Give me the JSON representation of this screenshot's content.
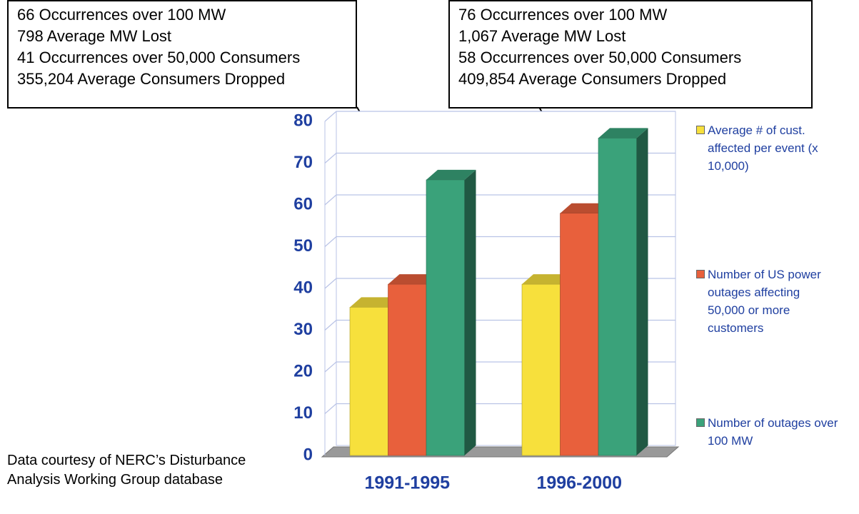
{
  "chart_data": {
    "type": "bar3d",
    "categories": [
      "1991-1995",
      "1996-2000"
    ],
    "series": [
      {
        "name": "Average # of cust. affected per event (x 10,000)",
        "color": "#f7e03c",
        "values": [
          35.5,
          41
        ]
      },
      {
        "name": "Number of US power outages affecting 50,000 or more customers",
        "color": "#e8603c",
        "values": [
          41,
          58
        ]
      },
      {
        "name": "Number of outages over 100 MW",
        "color": "#3aa27a",
        "values": [
          66,
          76
        ]
      }
    ],
    "ylim": [
      0,
      80
    ],
    "yticks": [
      0,
      10,
      20,
      30,
      40,
      50,
      60,
      70,
      80
    ],
    "grid": true,
    "legend": "right",
    "annotations": [
      [
        "66 Occurrences over 100 MW",
        "798 Average MW Lost",
        "41 Occurrences over 50,000 Consumers",
        "355,204 Average Consumers Dropped"
      ],
      [
        "76 Occurrences over 100 MW",
        "1,067 Average MW Lost",
        "58 Occurrences over 50,000 Consumers",
        "409,854 Average Consumers Dropped"
      ]
    ],
    "footnote": "Data courtesy of NERC’s Disturbance Analysis Working Group database"
  }
}
